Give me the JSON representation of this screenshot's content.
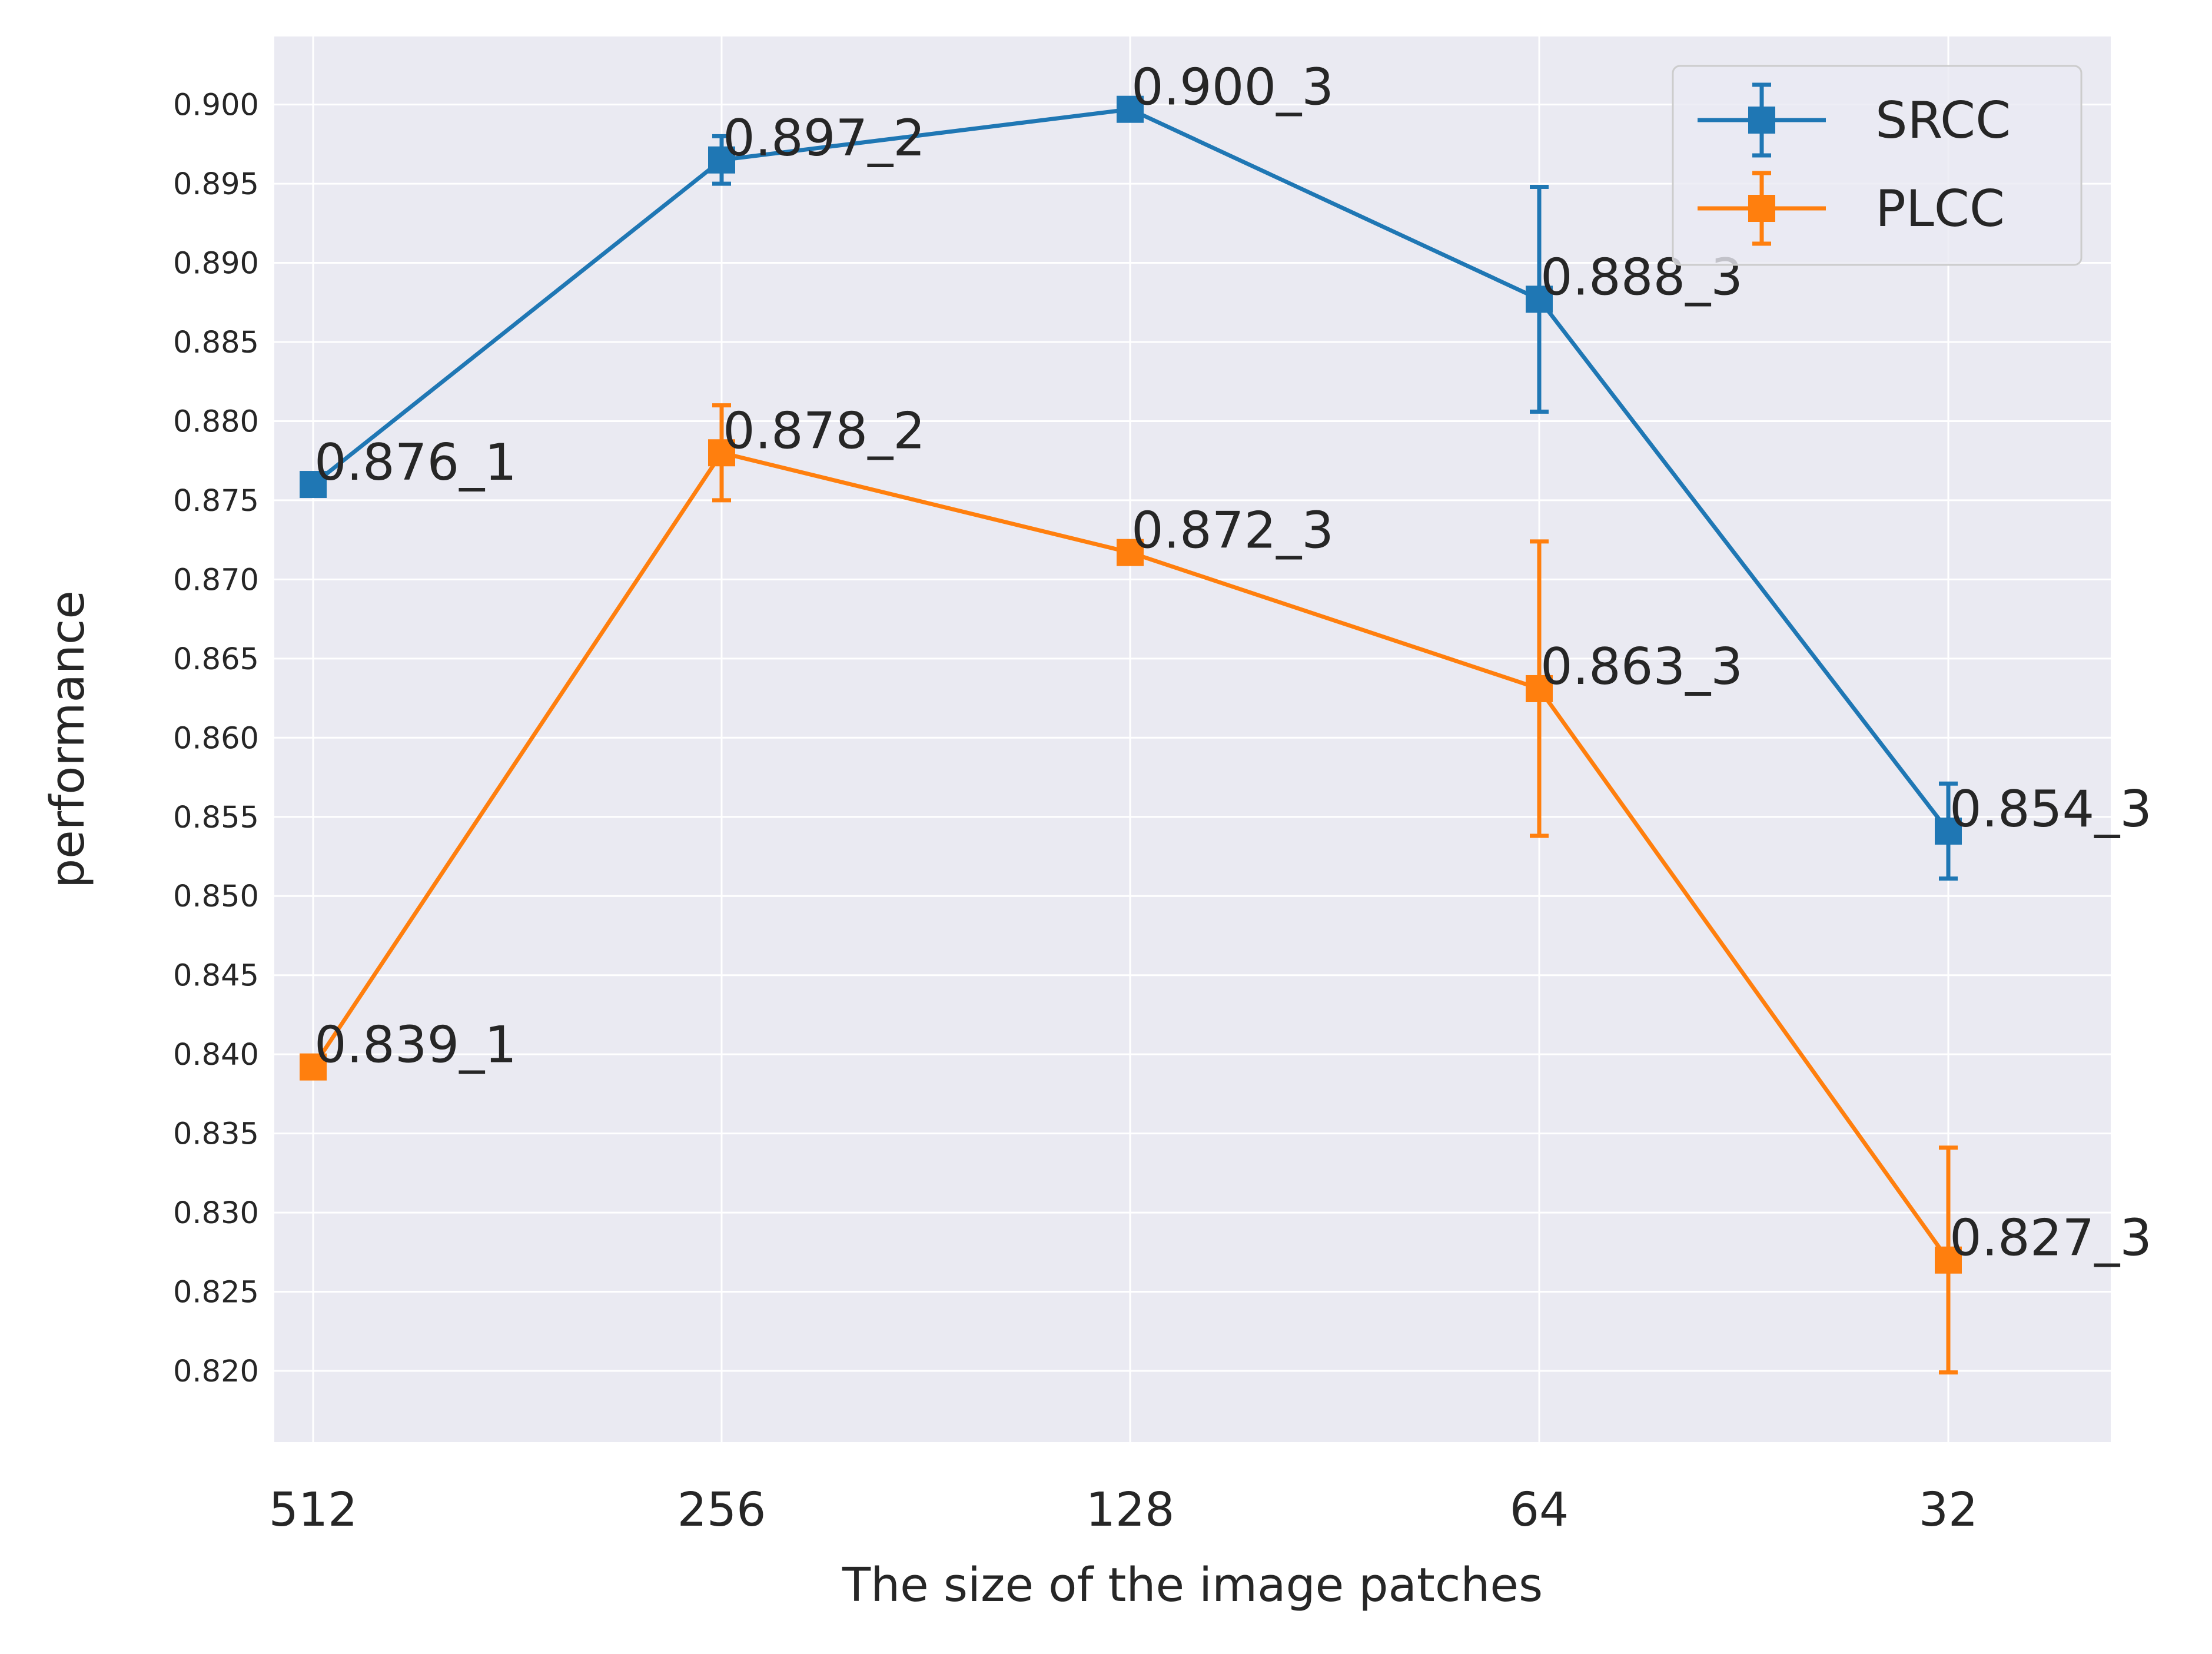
{
  "chart_data": {
    "type": "line",
    "title": "",
    "xlabel": "The size of the image patches",
    "ylabel": "performance",
    "categories": [
      "512",
      "256",
      "128",
      "64",
      "32"
    ],
    "ylim": [
      0.8155,
      0.9043
    ],
    "yticks": [
      "0.820",
      "0.825",
      "0.830",
      "0.835",
      "0.840",
      "0.845",
      "0.850",
      "0.855",
      "0.860",
      "0.865",
      "0.870",
      "0.875",
      "0.880",
      "0.885",
      "0.890",
      "0.895",
      "0.900"
    ],
    "grid": true,
    "legend_position": "top-right",
    "series": [
      {
        "name": "SRCC",
        "color": "#1f77b4",
        "marker": "square",
        "values": [
          0.876,
          0.8965,
          0.8997,
          0.8877,
          0.8541
        ],
        "errors": [
          0.0,
          0.0015,
          0.0,
          0.0071,
          0.003
        ],
        "labels": [
          "0.876_1",
          "0.897_2",
          "0.900_3",
          "0.888_3",
          "0.854_3"
        ]
      },
      {
        "name": "PLCC",
        "color": "#ff7f0e",
        "marker": "square",
        "values": [
          0.8392,
          0.878,
          0.8717,
          0.8631,
          0.827
        ],
        "errors": [
          0.0,
          0.003,
          0.0,
          0.0093,
          0.0071
        ],
        "labels": [
          "0.839_1",
          "0.878_2",
          "0.872_3",
          "0.863_3",
          "0.827_3"
        ]
      }
    ]
  }
}
